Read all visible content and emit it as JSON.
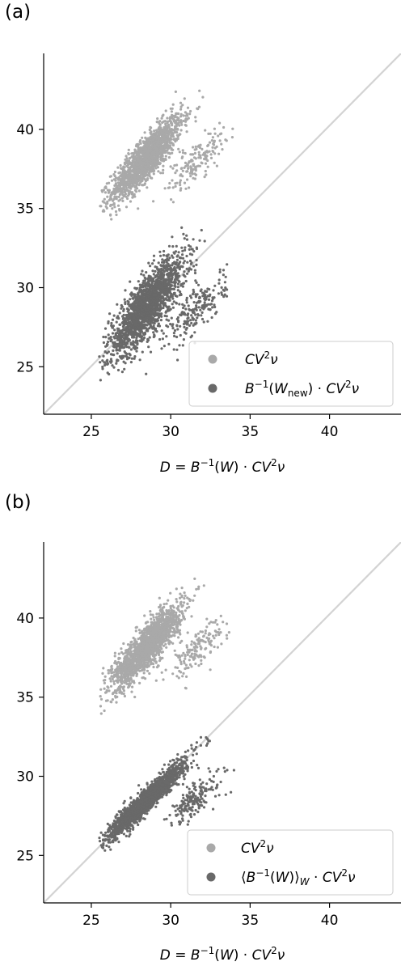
{
  "chart_data": [
    {
      "type": "scatter",
      "panel_label": "(a)",
      "xlabel": "D = B⁻¹(W) · CV²ν",
      "ylabel": "",
      "xlim": [
        22,
        44.5
      ],
      "ylim": [
        22,
        44.8
      ],
      "xticks": [
        25,
        30,
        35,
        40
      ],
      "yticks": [
        25,
        30,
        35,
        40
      ],
      "grid": false,
      "legend_position": "bottom-right",
      "diagonal_line": {
        "from": [
          22,
          22
        ],
        "to": [
          44.5,
          44.5
        ],
        "color": "#d3d3d3"
      },
      "series": [
        {
          "name": "CV²ν",
          "color": "#a9a9a9",
          "clusters": [
            {
              "x_mean": 28.5,
              "y_mean": 38.2,
              "sx": 1.1,
              "sy": 1.3,
              "rho": 0.85,
              "n": 1600
            },
            {
              "x_mean": 31.6,
              "y_mean": 38.0,
              "sx": 0.9,
              "sy": 1.0,
              "rho": 0.8,
              "n": 160
            }
          ],
          "x_range": [
            25.5,
            34.6
          ],
          "y_range": [
            34.1,
            42.7
          ]
        },
        {
          "name": "B⁻¹(W_new) · CV²ν",
          "color": "#696969",
          "clusters": [
            {
              "x_mean": 28.5,
              "y_mean": 28.8,
              "sx": 1.2,
              "sy": 1.6,
              "rho": 0.82,
              "n": 1800
            },
            {
              "x_mean": 31.7,
              "y_mean": 28.6,
              "sx": 0.9,
              "sy": 1.1,
              "rho": 0.75,
              "n": 200
            }
          ],
          "x_range": [
            25.5,
            34.3
          ],
          "y_range": [
            23.7,
            34.1
          ]
        }
      ]
    },
    {
      "type": "scatter",
      "panel_label": "(b)",
      "xlabel": "D = B⁻¹(W) · CV²ν",
      "ylabel": "",
      "xlim": [
        22,
        44.5
      ],
      "ylim": [
        22,
        44.8
      ],
      "xticks": [
        25,
        30,
        35,
        40
      ],
      "yticks": [
        25,
        30,
        35,
        40
      ],
      "grid": false,
      "legend_position": "bottom-right",
      "diagonal_line": {
        "from": [
          22,
          22
        ],
        "to": [
          44.5,
          44.5
        ],
        "color": "#d3d3d3"
      },
      "series": [
        {
          "name": "CV²ν",
          "color": "#a9a9a9",
          "clusters": [
            {
              "x_mean": 28.5,
              "y_mean": 38.2,
              "sx": 1.1,
              "sy": 1.3,
              "rho": 0.85,
              "n": 1600
            },
            {
              "x_mean": 31.6,
              "y_mean": 38.0,
              "sx": 0.9,
              "sy": 1.0,
              "rho": 0.8,
              "n": 160
            }
          ],
          "x_range": [
            25.5,
            34.6
          ],
          "y_range": [
            33.2,
            42.7
          ]
        },
        {
          "name": "⟨B⁻¹(W)⟩_W · CV²ν",
          "color": "#696969",
          "clusters": [
            {
              "x_mean": 28.5,
              "y_mean": 28.5,
              "sx": 1.2,
              "sy": 1.2,
              "rho": 0.95,
              "n": 1800
            },
            {
              "x_mean": 31.6,
              "y_mean": 28.6,
              "sx": 0.9,
              "sy": 0.9,
              "rho": 0.8,
              "n": 180
            }
          ],
          "x_range": [
            25.5,
            34.6
          ],
          "y_range": [
            23.9,
            33.5
          ]
        }
      ]
    }
  ]
}
